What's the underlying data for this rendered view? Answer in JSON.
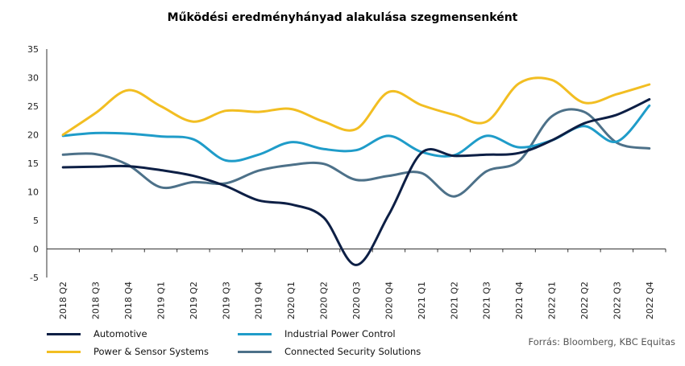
{
  "chart_data": {
    "type": "line",
    "title": "Működési eredményhányad alakulása szegmensenként",
    "xlabel": "",
    "ylabel": "",
    "categories": [
      "2018 Q2",
      "2018 Q3",
      "2018 Q4",
      "2019 Q1",
      "2019 Q2",
      "2019 Q3",
      "2019 Q4",
      "2020 Q1",
      "2020 Q2",
      "2020 Q3",
      "2020 Q4",
      "2021 Q1",
      "2021 Q2",
      "2021 Q3",
      "2021 Q4",
      "2022 Q1",
      "2022 Q2",
      "2022 Q3",
      "2022 Q4"
    ],
    "ylim": [
      -5,
      35
    ],
    "yticks": [
      35,
      30,
      25,
      20,
      15,
      10,
      5,
      0,
      -5
    ],
    "grid": false,
    "legend_position": "bottom",
    "series": [
      {
        "name": "Automotive",
        "color": "#0d1f45",
        "values": [
          14.3,
          14.4,
          14.5,
          13.8,
          12.8,
          11.0,
          8.5,
          7.8,
          5.5,
          -2.8,
          6.0,
          16.8,
          16.3,
          16.5,
          16.8,
          19.0,
          22.0,
          23.5,
          26.2
        ]
      },
      {
        "name": "Industrial Power Control",
        "color": "#1f9cc9",
        "values": [
          19.8,
          20.3,
          20.2,
          19.7,
          19.2,
          15.5,
          16.5,
          18.7,
          17.5,
          17.3,
          19.8,
          17.0,
          16.4,
          19.8,
          17.8,
          19.0,
          21.5,
          18.8,
          25.1
        ]
      },
      {
        "name": "Power & Sensor Systems",
        "color": "#f2be22",
        "values": [
          20.0,
          23.8,
          27.8,
          25.0,
          22.3,
          24.2,
          24.0,
          24.5,
          22.3,
          21.0,
          27.5,
          25.2,
          23.5,
          22.3,
          29.0,
          29.6,
          25.6,
          27.1,
          28.8
        ]
      },
      {
        "name": "Connected Security Solutions",
        "color": "#4d7189",
        "values": [
          16.5,
          16.6,
          14.7,
          10.8,
          11.7,
          11.5,
          13.7,
          14.7,
          14.9,
          12.1,
          12.8,
          13.3,
          9.2,
          13.6,
          15.4,
          23.2,
          24.0,
          18.6,
          17.6
        ]
      }
    ]
  },
  "source": "Forrás: Bloomberg, KBC Equitas"
}
